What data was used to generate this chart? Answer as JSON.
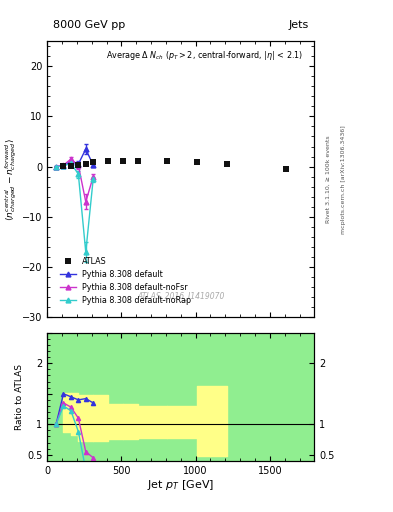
{
  "title_left": "8000 GeV pp",
  "title_right": "Jets",
  "right_label1": "Rivet 3.1.10, ≥ 100k events",
  "right_label2": "mcplots.cern.ch [arXiv:1306.3436]",
  "annotation": "ATLAS_2016_I1419070",
  "xlabel": "Jet p_{T} [GeV]",
  "xlim": [
    0,
    1800
  ],
  "ylim_main": [
    -30,
    25
  ],
  "ylim_ratio": [
    0.4,
    2.5
  ],
  "atlas_x": [
    110,
    160,
    210,
    260,
    310,
    410,
    510,
    610,
    810,
    1010,
    1210,
    1610
  ],
  "atlas_y": [
    0.05,
    0.1,
    0.3,
    0.5,
    1.0,
    1.2,
    1.2,
    1.2,
    1.1,
    1.0,
    0.5,
    -0.5
  ],
  "atlas_color": "#111111",
  "pythia_default_x": [
    60,
    110,
    160,
    210,
    260,
    310
  ],
  "pythia_default_y": [
    0.0,
    0.2,
    1.0,
    0.5,
    3.5,
    0.3
  ],
  "pythia_default_yerr": [
    0.05,
    0.2,
    0.4,
    0.7,
    1.0,
    0.3
  ],
  "pythia_default_color": "#3333dd",
  "pythia_noFsr_x": [
    60,
    110,
    160,
    210,
    260,
    310
  ],
  "pythia_noFsr_y": [
    0.0,
    0.3,
    1.5,
    0.3,
    -7.0,
    -2.0
  ],
  "pythia_noFsr_yerr": [
    0.05,
    0.2,
    0.5,
    0.7,
    1.5,
    0.5
  ],
  "pythia_noFsr_color": "#cc33cc",
  "pythia_noRap_x": [
    60,
    110,
    160,
    210,
    260,
    310
  ],
  "pythia_noRap_y": [
    0.0,
    0.1,
    0.7,
    -1.5,
    -17.0,
    -2.5
  ],
  "pythia_noRap_yerr": [
    0.05,
    0.2,
    0.4,
    0.7,
    2.0,
    0.5
  ],
  "pythia_noRap_color": "#33cccc",
  "green_color": "#90ee90",
  "yellow_color": "#ffff88",
  "yellow_x_edges": [
    110,
    160,
    210,
    310,
    410,
    510,
    610,
    810,
    1010,
    1210
  ],
  "yellow_y1": [
    0.88,
    0.82,
    0.72,
    0.72,
    0.76,
    0.76,
    0.78,
    0.78,
    0.48,
    0.48
  ],
  "yellow_y2": [
    1.52,
    1.52,
    1.48,
    1.48,
    1.34,
    1.34,
    1.3,
    1.3,
    1.62,
    1.62
  ],
  "ratio_default_x": [
    60,
    110,
    160,
    210,
    260,
    310
  ],
  "ratio_default_y": [
    1.0,
    1.5,
    1.45,
    1.4,
    1.42,
    1.35
  ],
  "ratio_noFsr_x": [
    60,
    110,
    160,
    210,
    260,
    310
  ],
  "ratio_noFsr_y": [
    1.0,
    1.35,
    1.28,
    1.1,
    0.55,
    0.45
  ],
  "ratio_noRap_x": [
    60,
    110,
    160,
    210,
    260,
    310
  ],
  "ratio_noRap_y": [
    1.0,
    1.3,
    1.22,
    0.88,
    0.25,
    0.1
  ],
  "bg_color": "#ffffff"
}
